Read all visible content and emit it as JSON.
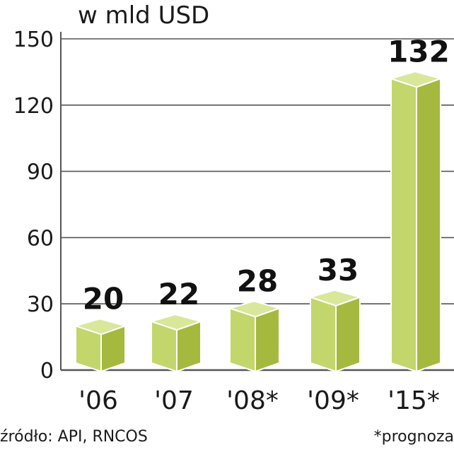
{
  "chart_data": {
    "type": "bar",
    "title": "w mld USD",
    "categories": [
      "'06",
      "'07",
      "'08*",
      "'09*",
      "'15*"
    ],
    "values": [
      20,
      22,
      28,
      33,
      132
    ],
    "data_labels": [
      "20",
      "22",
      "28",
      "33",
      "132"
    ],
    "ylim": [
      0,
      150
    ],
    "yticks": [
      "0",
      "30",
      "60",
      "90",
      "120",
      "150"
    ],
    "grid": true,
    "style": "3d-boxes"
  },
  "source": "źródło: API, RNCOS",
  "footnote": "*prognoza",
  "colors": {
    "bar_front": "#c3d66b",
    "bar_side": "#a5b93f",
    "bar_top": "#d9e79a",
    "outline": "#ffffff",
    "grid": "#555555",
    "text": "#1a1a1a"
  }
}
